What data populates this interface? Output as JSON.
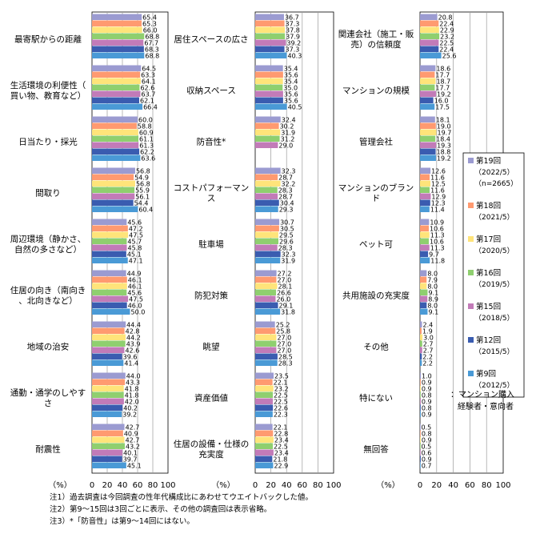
{
  "chart_data": {
    "type": "bar",
    "orientation": "horizontal",
    "xlim": [
      0,
      100
    ],
    "xticks": [
      0,
      20,
      40,
      60,
      80,
      100
    ],
    "xlabel": "（%）",
    "grid": true,
    "series": [
      {
        "name": "第19回",
        "sub": [
          "（2022/5）",
          "（n=2665）"
        ],
        "color": "#9b9bd1"
      },
      {
        "name": "第18回",
        "sub": [
          "（2021/5）"
        ],
        "color": "#ff9a70"
      },
      {
        "name": "第17回",
        "sub": [
          "（2020/5）"
        ],
        "color": "#ffe47a"
      },
      {
        "name": "第16回",
        "sub": [
          "（2019/5）"
        ],
        "color": "#8fcf6f"
      },
      {
        "name": "第15回",
        "sub": [
          "（2018/5）"
        ],
        "color": "#c27bb8"
      },
      {
        "name": "第12回",
        "sub": [
          "（2015/5）"
        ],
        "color": "#3a5cb0"
      },
      {
        "name": "第9回",
        "sub": [
          "（2012/5）"
        ],
        "color": "#4a9ad6"
      }
    ],
    "panels": [
      {
        "categories": [
          {
            "label": "最寄駅からの距離",
            "values": [
              "65.4",
              "65.3",
              "66.0",
              "68.8",
              "67.7",
              "68.3",
              "68.8"
            ]
          },
          {
            "label": "生活環境の利便性（買い物、教育など）",
            "values": [
              "64.5",
              "63.3",
              "64.1",
              "62.6",
              "63.7",
              "62.1",
              "66.4"
            ]
          },
          {
            "label": "日当たり・採光",
            "values": [
              "60.0",
              "58.8",
              "60.9",
              "61.1",
              "61.3",
              "62.2",
              "63.6"
            ]
          },
          {
            "label": "間取り",
            "values": [
              "56.8",
              "54.9",
              "56.8",
              "55.9",
              "56.1",
              "54.4",
              "60.4"
            ]
          },
          {
            "label": "周辺環境（静かさ、自然の多さなど）",
            "values": [
              "45.6",
              "47.2",
              "47.5",
              "45.7",
              "45.8",
              "45.1",
              "47.1"
            ]
          },
          {
            "label": "住居の向き（南向き、北向きなど）",
            "values": [
              "44.9",
              "46.1",
              "46.1",
              "45.6",
              "47.5",
              "46.0",
              "50.0"
            ]
          },
          {
            "label": "地域の治安",
            "values": [
              "44.4",
              "42.8",
              "44.2",
              "43.9",
              "42.6",
              "39.6",
              "41.4"
            ]
          },
          {
            "label": "通勤・通学のしやすさ",
            "values": [
              "44.0",
              "43.3",
              "41.8",
              "41.8",
              "42.0",
              "40.2",
              "39.2"
            ]
          },
          {
            "label": "耐震性",
            "values": [
              "42.7",
              "40.9",
              "42.7",
              "43.2",
              "40.1",
              "39.7",
              "45.1"
            ]
          }
        ]
      },
      {
        "categories": [
          {
            "label": "居住スペースの広さ",
            "values": [
              "36.7",
              "37.3",
              "37.8",
              "37.9",
              "39.2",
              "37.3",
              "40.3"
            ]
          },
          {
            "label": "収納スペース",
            "values": [
              "35.4",
              "35.6",
              "35.4",
              "35.0",
              "35.6",
              "35.6",
              "40.5"
            ]
          },
          {
            "label": "防音性*",
            "values": [
              "32.4",
              "30.2",
              "31.9",
              "31.2",
              "29.0",
              null,
              null
            ]
          },
          {
            "label": "コストパフォーマンス",
            "values": [
              "32.3",
              "28.7",
              "32.2",
              "28.3",
              "28.7",
              "30.4",
              "29.3"
            ]
          },
          {
            "label": "駐車場",
            "values": [
              "30.7",
              "30.5",
              "29.5",
              "29.6",
              "28.3",
              "32.3",
              "31.9"
            ]
          },
          {
            "label": "防犯対策",
            "values": [
              "27.2",
              "27.0",
              "28.1",
              "26.6",
              "26.0",
              "29.1",
              "31.8"
            ]
          },
          {
            "label": "眺望",
            "values": [
              "25.2",
              "25.8",
              "27.0",
              "27.0",
              "27.0",
              "28.5",
              "28.3"
            ]
          },
          {
            "label": "資産価値",
            "values": [
              "23.5",
              "22.1",
              "23.2",
              "22.5",
              "22.5",
              "22.6",
              "22.3"
            ]
          },
          {
            "label": "住居の設備・仕様の充実度",
            "values": [
              "22.1",
              "22.8",
              "23.4",
              "22.5",
              "23.4",
              "21.8",
              "22.9"
            ]
          }
        ]
      },
      {
        "categories": [
          {
            "label": "関連会社（施工・販売）の信頼度",
            "values": [
              "20.8",
              "22.4",
              "22.9",
              "23.2",
              "22.5",
              "22.4",
              "25.6"
            ]
          },
          {
            "label": "マンションの規模",
            "values": [
              "18.6",
              "17.7",
              "18.7",
              "17.7",
              "19.2",
              "16.0",
              "17.5"
            ]
          },
          {
            "label": "管理会社",
            "values": [
              "18.1",
              "19.0",
              "19.7",
              "18.4",
              "19.3",
              "18.8",
              "19.2"
            ]
          },
          {
            "label": "マンションのブランド",
            "values": [
              "12.6",
              "11.6",
              "12.5",
              "11.6",
              "12.9",
              "12.3",
              "11.4"
            ]
          },
          {
            "label": "ペット可",
            "values": [
              "10.9",
              "10.6",
              "11.3",
              "10.6",
              "11.3",
              "9.7",
              "11.8"
            ]
          },
          {
            "label": "共用施設の充実度",
            "values": [
              "8.0",
              "7.9",
              "8.0",
              "9.1",
              "8.9",
              "8.0",
              "9.1"
            ]
          },
          {
            "label": "その他",
            "values": [
              "2.4",
              "1.9",
              "3.0",
              "2.7",
              "2.7",
              "2.2",
              "2.2"
            ]
          },
          {
            "label": "特にない",
            "values": [
              "1.0",
              "0.9",
              "0.9",
              "0.8",
              "0.9",
              "0.8",
              "0.9"
            ]
          },
          {
            "label": "無回答",
            "values": [
              "0.5",
              "0.8",
              "0.9",
              "0.5",
              "0.6",
              "0.9",
              "0.7"
            ]
          }
        ]
      }
    ],
    "legend_note": "：マンション購入経験者・意向者"
  },
  "notes": [
    "注1）過去調査は今回調査の性年代構成比にあわせてウエイトバックした値。",
    "注2）第9～15回は3回ごとに表示、その他の調査回は表示省略。",
    "注3）*「防音性」は第9～14回にはない。"
  ]
}
